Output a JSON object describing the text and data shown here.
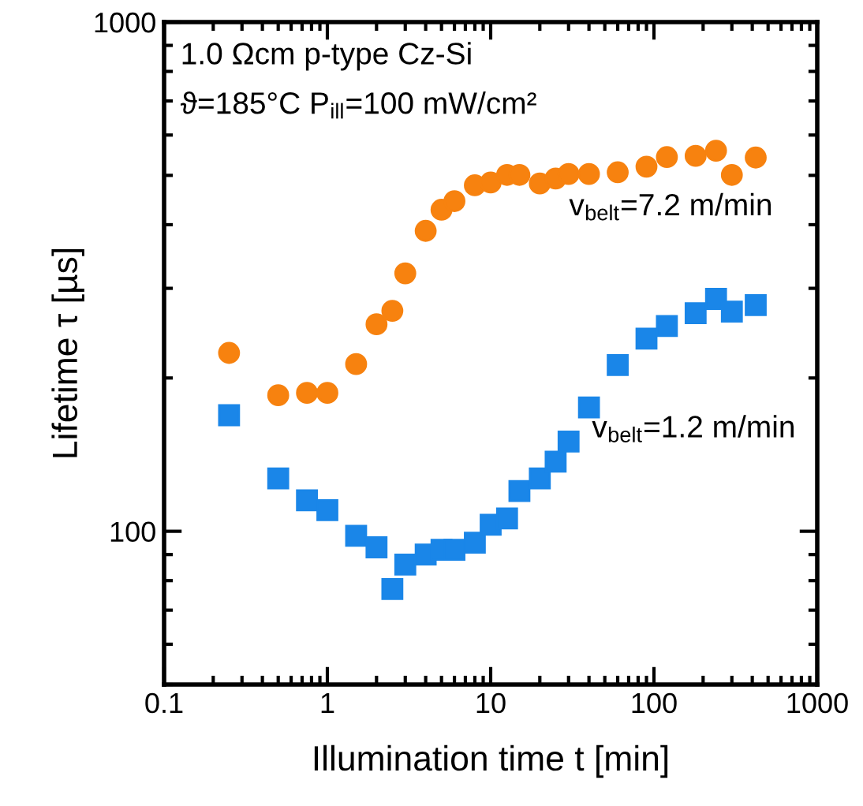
{
  "chart_data": {
    "type": "scatter",
    "xlabel": "Illumination time t [min]",
    "ylabel": "Lifetime τ [µs]",
    "log": "xy",
    "xlim": [
      0.1,
      1000
    ],
    "ylim": [
      50,
      1000
    ],
    "xticks": [
      0.1,
      1,
      10,
      100,
      1000
    ],
    "yticks": [
      100,
      1000
    ],
    "grid": false,
    "legend": false,
    "series": [
      {
        "color": "#f7820f",
        "marker": "circle",
        "x": [
          0.25,
          0.5,
          0.75,
          1,
          1.5,
          2,
          2.5,
          3,
          4,
          5,
          6,
          8,
          10,
          12.6,
          15,
          20,
          25,
          30,
          40,
          60,
          90,
          120,
          180,
          240,
          300,
          420
        ],
        "values": [
          224,
          185,
          187,
          187,
          213,
          255,
          271,
          321,
          389,
          428,
          445,
          478,
          484,
          501,
          501,
          482,
          493,
          503,
          503,
          507,
          520,
          543,
          546,
          559,
          501,
          542
        ]
      },
      {
        "color": "#1a86e8",
        "marker": "square",
        "x": [
          0.25,
          0.5,
          0.75,
          1,
          1.5,
          2,
          2.5,
          3,
          4,
          5,
          6,
          8,
          10,
          12.6,
          15,
          20,
          25,
          30,
          40,
          60,
          90,
          120,
          180,
          240,
          300,
          420
        ],
        "values": [
          169,
          127,
          115,
          110,
          98,
          93,
          77,
          86,
          90,
          92,
          92,
          95,
          103,
          106,
          120,
          127,
          137,
          150,
          175,
          212,
          239,
          253,
          268,
          286,
          270,
          278
        ]
      }
    ],
    "annotations": [
      "1.0 Ωcm p-type Cz-Si",
      "ϑ=185°C P$_{ill}$=100 mW/cm²",
      "v$_{belt}$=7.2 m/min",
      "v$_{belt}$=1.2 m/min"
    ]
  }
}
